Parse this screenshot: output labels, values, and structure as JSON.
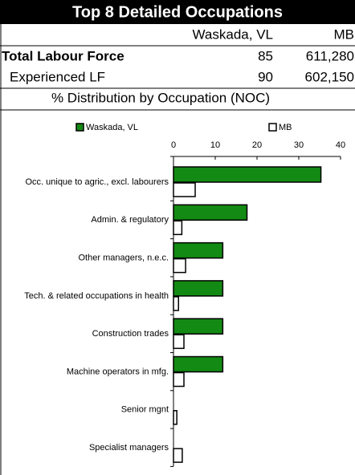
{
  "table": {
    "title": "Top 8 Detailed Occupations",
    "columns": [
      "Waskada, VL",
      "MB"
    ],
    "rows": [
      [
        "Total Labour Force",
        85,
        "611,280"
      ],
      [
        "Experienced LF",
        90,
        "602,150"
      ]
    ]
  },
  "chart_data": {
    "type": "bar",
    "orientation": "horizontal",
    "title": "% Distribution by Occupation (NOC)",
    "categories": [
      "Occ. unique to agric., excl. labourers",
      "Admin. & regulatory",
      "Other managers, n.e.c.",
      "Tech. & related occupations in health",
      "Construction trades",
      "Machine operators in mfg.",
      "Senior mgnt",
      "Specialist managers"
    ],
    "series": [
      {
        "name": "Waskada, VL",
        "color": "#138a13",
        "values": [
          35.3,
          17.6,
          11.8,
          11.8,
          11.8,
          11.8,
          0,
          0
        ]
      },
      {
        "name": "MB",
        "color": "#ffffff",
        "values": [
          5.2,
          2.0,
          2.9,
          1.2,
          2.5,
          2.5,
          0.8,
          2.1
        ]
      }
    ],
    "xlim": [
      0,
      40
    ],
    "xticks": [
      0,
      10,
      20,
      30,
      40
    ],
    "legend": "top"
  }
}
